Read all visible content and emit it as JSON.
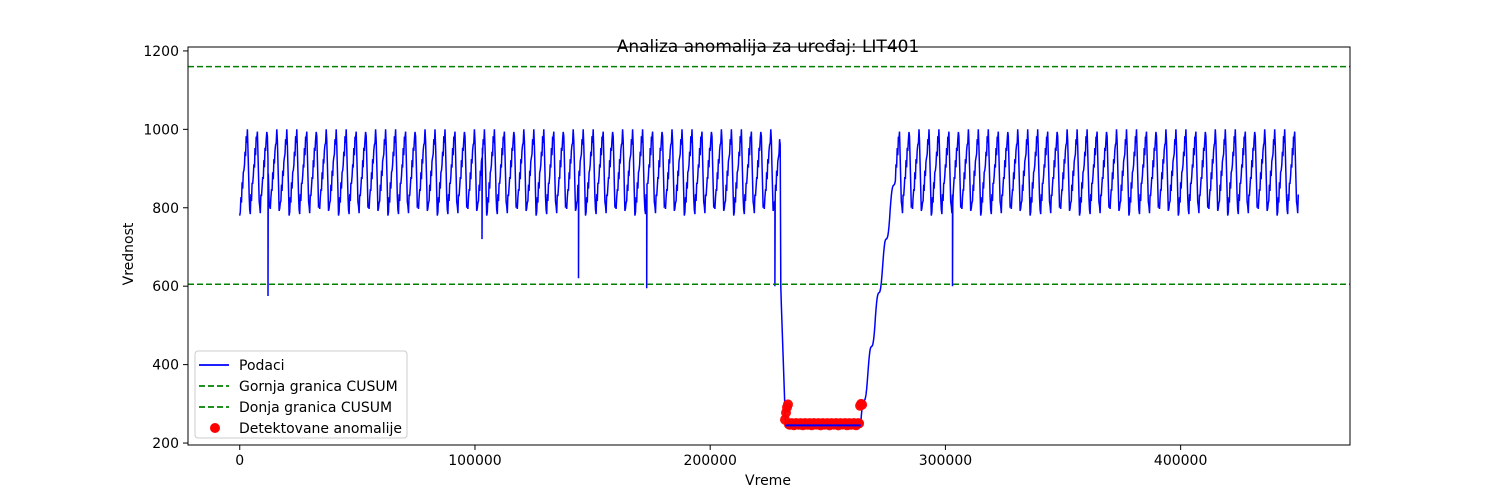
{
  "chart_data": {
    "type": "line",
    "title": "Analiza anomalija za uređaj: LIT401",
    "xlabel": "Vreme",
    "ylabel": "Vrednost",
    "xlim": [
      -22000,
      472000
    ],
    "ylim": [
      195,
      1210
    ],
    "xticks": [
      0,
      100000,
      200000,
      300000,
      400000
    ],
    "yticks": [
      200,
      400,
      600,
      800,
      1000,
      1200
    ],
    "grid": false,
    "legend_position": "lower-left",
    "series": [
      {
        "name": "Podaci",
        "style": "line",
        "color": "#0000ff"
      },
      {
        "name": "Gornja granica CUSUM",
        "style": "dashed",
        "color": "#008000",
        "y": 1160
      },
      {
        "name": "Donja granica CUSUM",
        "style": "dashed",
        "color": "#008000",
        "y": 605
      },
      {
        "name": "Detektovane anomalije",
        "style": "scatter",
        "color": "#ff0000"
      }
    ],
    "signal": {
      "x_start": 0,
      "x_end": 450000,
      "cycle_period": 4200,
      "cycle_min": 780,
      "cycle_max": 1000,
      "dips": [
        {
          "x": 12000,
          "y": 575
        },
        {
          "x": 103000,
          "y": 720
        },
        {
          "x": 144000,
          "y": 620
        },
        {
          "x": 173000,
          "y": 595
        },
        {
          "x": 227500,
          "y": 600
        },
        {
          "x": 303000,
          "y": 600
        }
      ],
      "drop": {
        "x_start": 230000,
        "x_low_start": 232000,
        "low_value": 245,
        "x_low_end": 264000,
        "x_recover_end": 279000
      }
    },
    "anomalies": {
      "x_start": 231800,
      "x_end": 264800,
      "y_min": 240,
      "y_max": 300
    }
  }
}
